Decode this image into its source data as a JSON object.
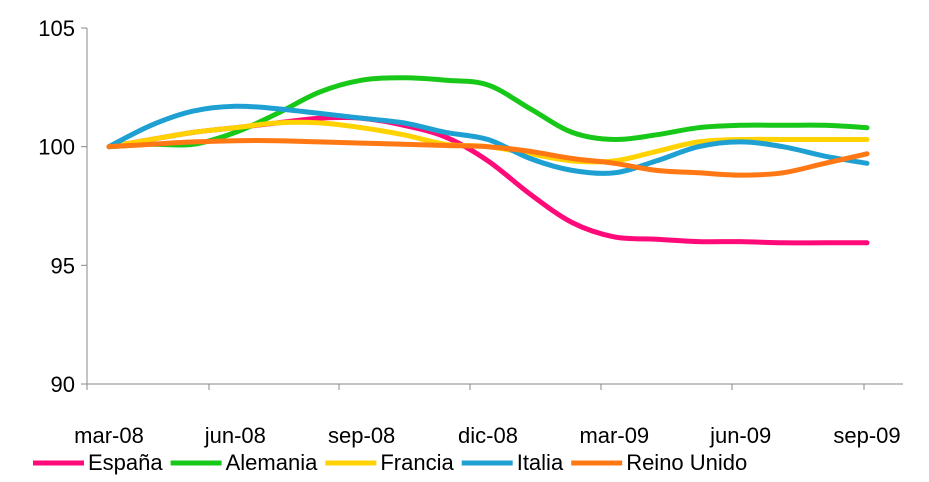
{
  "chart_data": {
    "type": "line",
    "title": "",
    "xlabel": "",
    "ylabel": "",
    "ylim": [
      90,
      105
    ],
    "yticks": [
      90,
      95,
      100,
      105
    ],
    "grid": false,
    "legend_position": "bottom",
    "x": [
      "mar-08",
      "abr-08",
      "may-08",
      "jun-08",
      "jul-08",
      "ago-08",
      "sep-08",
      "oct-08",
      "nov-08",
      "dic-08",
      "ene-09",
      "feb-09",
      "mar-09",
      "abr-09",
      "may-09",
      "jun-09",
      "jul-09",
      "ago-09",
      "sep-09"
    ],
    "xtick_labels": [
      "mar-08",
      "jun-08",
      "sep-08",
      "dic-08",
      "mar-09",
      "jun-09",
      "sep-09"
    ],
    "series": [
      {
        "name": "España",
        "color": "#ff0a78",
        "values": [
          100,
          100.3,
          100.6,
          100.8,
          101.0,
          101.2,
          101.2,
          100.9,
          100.4,
          99.4,
          98.0,
          96.8,
          96.2,
          96.1,
          96.0,
          96.0,
          95.95,
          95.95,
          95.95
        ]
      },
      {
        "name": "Alemania",
        "color": "#18c818",
        "values": [
          100,
          100.1,
          100.1,
          100.6,
          101.4,
          102.3,
          102.8,
          102.9,
          102.8,
          102.6,
          101.6,
          100.6,
          100.3,
          100.5,
          100.8,
          100.9,
          100.9,
          100.9,
          100.8
        ]
      },
      {
        "name": "Francia",
        "color": "#ffd200",
        "values": [
          100,
          100.3,
          100.6,
          100.8,
          101.0,
          101.0,
          100.8,
          100.5,
          100.1,
          100.0,
          99.7,
          99.4,
          99.4,
          99.8,
          100.2,
          100.3,
          100.3,
          100.3,
          100.3
        ]
      },
      {
        "name": "Italia",
        "color": "#1ea0d2",
        "values": [
          100,
          100.9,
          101.5,
          101.7,
          101.6,
          101.4,
          101.2,
          101.0,
          100.6,
          100.3,
          99.5,
          99.0,
          98.9,
          99.4,
          100.0,
          100.2,
          100.0,
          99.6,
          99.3
        ]
      },
      {
        "name": "Reino Unido",
        "color": "#ff7814",
        "values": [
          100,
          100.1,
          100.2,
          100.25,
          100.25,
          100.2,
          100.15,
          100.1,
          100.05,
          100.0,
          99.8,
          99.5,
          99.3,
          99.0,
          98.9,
          98.8,
          98.9,
          99.3,
          99.7
        ]
      }
    ]
  }
}
